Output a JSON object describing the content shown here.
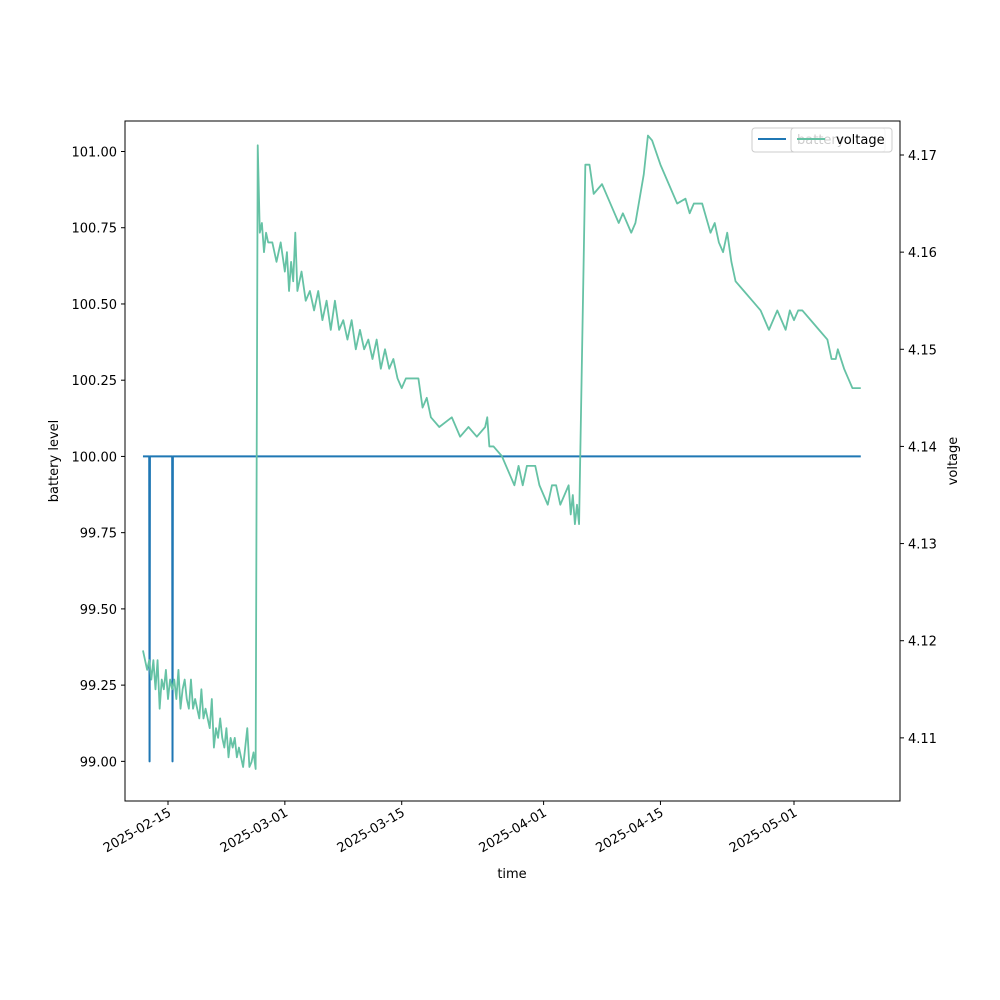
{
  "chart_data": {
    "type": "line",
    "xlabel": "time",
    "x_ticks": [
      "2025-02-15",
      "2025-03-01",
      "2025-03-15",
      "2025-04-01",
      "2025-04-15",
      "2025-05-01"
    ],
    "left_axis": {
      "label": "battery level",
      "ylim": [
        98.87,
        101.1
      ],
      "ticks": [
        "99.00",
        "99.25",
        "99.50",
        "99.75",
        "100.00",
        "100.25",
        "100.50",
        "100.75",
        "101.00"
      ]
    },
    "right_axis": {
      "label": "voltage",
      "ylim": [
        4.1035,
        4.1735
      ],
      "ticks": [
        "4.11",
        "4.12",
        "4.13",
        "4.14",
        "4.15",
        "4.16",
        "4.17"
      ]
    },
    "grid": false,
    "legend": {
      "placement": "top-right",
      "entries": [
        "battery",
        "voltage"
      ]
    },
    "series": [
      {
        "name": "battery",
        "axis": "left",
        "color": "#1f77b4",
        "points": [
          [
            "2025-02-12",
            100
          ],
          [
            "2025-02-12 18:00",
            100
          ],
          [
            "2025-02-12 19:00",
            99
          ],
          [
            "2025-02-12 20:00",
            100
          ],
          [
            "2025-02-15 12:00",
            100
          ],
          [
            "2025-02-15 13:00",
            99
          ],
          [
            "2025-02-15 14:00",
            100
          ],
          [
            "2025-05-09",
            100
          ]
        ]
      },
      {
        "name": "voltage",
        "axis": "right",
        "color": "#66c2a5",
        "points": [
          [
            "2025-02-12",
            4.119
          ],
          [
            "2025-02-12 06:00",
            4.118
          ],
          [
            "2025-02-12 12:00",
            4.117
          ],
          [
            "2025-02-12 18:00",
            4.118
          ],
          [
            "2025-02-13 00:00",
            4.116
          ],
          [
            "2025-02-13 06:00",
            4.118
          ],
          [
            "2025-02-13 12:00",
            4.115
          ],
          [
            "2025-02-13 18:00",
            4.118
          ],
          [
            "2025-02-14 00:00",
            4.113
          ],
          [
            "2025-02-14 06:00",
            4.116
          ],
          [
            "2025-02-14 12:00",
            4.115
          ],
          [
            "2025-02-14 18:00",
            4.117
          ],
          [
            "2025-02-15 00:00",
            4.114
          ],
          [
            "2025-02-15 06:00",
            4.116
          ],
          [
            "2025-02-15 12:00",
            4.115
          ],
          [
            "2025-02-15 18:00",
            4.116
          ],
          [
            "2025-02-16 00:00",
            4.114
          ],
          [
            "2025-02-16 06:00",
            4.117
          ],
          [
            "2025-02-16 12:00",
            4.113
          ],
          [
            "2025-02-16 18:00",
            4.115
          ],
          [
            "2025-02-17 00:00",
            4.116
          ],
          [
            "2025-02-17 06:00",
            4.114
          ],
          [
            "2025-02-17 12:00",
            4.113
          ],
          [
            "2025-02-17 18:00",
            4.116
          ],
          [
            "2025-02-18 00:00",
            4.113
          ],
          [
            "2025-02-18 06:00",
            4.114
          ],
          [
            "2025-02-18 12:00",
            4.113
          ],
          [
            "2025-02-18 18:00",
            4.112
          ],
          [
            "2025-02-19 00:00",
            4.115
          ],
          [
            "2025-02-19 06:00",
            4.112
          ],
          [
            "2025-02-19 12:00",
            4.113
          ],
          [
            "2025-02-19 18:00",
            4.112
          ],
          [
            "2025-02-20 00:00",
            4.111
          ],
          [
            "2025-02-20 06:00",
            4.114
          ],
          [
            "2025-02-20 12:00",
            4.109
          ],
          [
            "2025-02-20 18:00",
            4.111
          ],
          [
            "2025-02-21 00:00",
            4.11
          ],
          [
            "2025-02-21 06:00",
            4.112
          ],
          [
            "2025-02-21 12:00",
            4.11
          ],
          [
            "2025-02-21 18:00",
            4.109
          ],
          [
            "2025-02-22 00:00",
            4.111
          ],
          [
            "2025-02-22 06:00",
            4.108
          ],
          [
            "2025-02-22 12:00",
            4.11
          ],
          [
            "2025-02-22 18:00",
            4.109
          ],
          [
            "2025-02-23 00:00",
            4.11
          ],
          [
            "2025-02-23 06:00",
            4.108
          ],
          [
            "2025-02-23 12:00",
            4.109
          ],
          [
            "2025-02-23 18:00",
            4.108
          ],
          [
            "2025-02-24 00:00",
            4.107
          ],
          [
            "2025-02-24 12:00",
            4.111
          ],
          [
            "2025-02-24 18:00",
            4.107
          ],
          [
            "2025-02-25 00:00",
            4.1075
          ],
          [
            "2025-02-25 06:00",
            4.1085
          ],
          [
            "2025-02-25 12:00",
            4.1068
          ],
          [
            "2025-02-25 18:00",
            4.171
          ],
          [
            "2025-02-26 00:00",
            4.162
          ],
          [
            "2025-02-26 06:00",
            4.163
          ],
          [
            "2025-02-26 12:00",
            4.16
          ],
          [
            "2025-02-26 18:00",
            4.162
          ],
          [
            "2025-02-27 00:00",
            4.161
          ],
          [
            "2025-02-27 12:00",
            4.161
          ],
          [
            "2025-02-28 00:00",
            4.159
          ],
          [
            "2025-02-28 12:00",
            4.161
          ],
          [
            "2025-03-01 00:00",
            4.158
          ],
          [
            "2025-03-01 06:00",
            4.16
          ],
          [
            "2025-03-01 12:00",
            4.156
          ],
          [
            "2025-03-01 18:00",
            4.159
          ],
          [
            "2025-03-02 00:00",
            4.157
          ],
          [
            "2025-03-02 06:00",
            4.162
          ],
          [
            "2025-03-02 12:00",
            4.156
          ],
          [
            "2025-03-03 00:00",
            4.158
          ],
          [
            "2025-03-03 12:00",
            4.155
          ],
          [
            "2025-03-04 00:00",
            4.156
          ],
          [
            "2025-03-04 12:00",
            4.154
          ],
          [
            "2025-03-05 00:00",
            4.156
          ],
          [
            "2025-03-05 12:00",
            4.153
          ],
          [
            "2025-03-06 00:00",
            4.155
          ],
          [
            "2025-03-06 12:00",
            4.152
          ],
          [
            "2025-03-07 00:00",
            4.155
          ],
          [
            "2025-03-07 12:00",
            4.152
          ],
          [
            "2025-03-08 00:00",
            4.153
          ],
          [
            "2025-03-08 12:00",
            4.151
          ],
          [
            "2025-03-09 00:00",
            4.153
          ],
          [
            "2025-03-09 12:00",
            4.15
          ],
          [
            "2025-03-10 00:00",
            4.152
          ],
          [
            "2025-03-10 12:00",
            4.15
          ],
          [
            "2025-03-11 00:00",
            4.151
          ],
          [
            "2025-03-11 12:00",
            4.149
          ],
          [
            "2025-03-12 00:00",
            4.151
          ],
          [
            "2025-03-12 12:00",
            4.148
          ],
          [
            "2025-03-13 00:00",
            4.15
          ],
          [
            "2025-03-13 12:00",
            4.148
          ],
          [
            "2025-03-14 00:00",
            4.149
          ],
          [
            "2025-03-14 12:00",
            4.147
          ],
          [
            "2025-03-15 00:00",
            4.146
          ],
          [
            "2025-03-15 12:00",
            4.147
          ],
          [
            "2025-03-16 00:00",
            4.147
          ],
          [
            "2025-03-17 00:00",
            4.147
          ],
          [
            "2025-03-17 12:00",
            4.144
          ],
          [
            "2025-03-18 00:00",
            4.145
          ],
          [
            "2025-03-18 12:00",
            4.143
          ],
          [
            "2025-03-19 12:00",
            4.142
          ],
          [
            "2025-03-21 00:00",
            4.143
          ],
          [
            "2025-03-22 00:00",
            4.141
          ],
          [
            "2025-03-23 00:00",
            4.142
          ],
          [
            "2025-03-24 00:00",
            4.141
          ],
          [
            "2025-03-25 00:00",
            4.142
          ],
          [
            "2025-03-25 06:00",
            4.143
          ],
          [
            "2025-03-25 12:00",
            4.14
          ],
          [
            "2025-03-26 00:00",
            4.14
          ],
          [
            "2025-03-27 00:00",
            4.139
          ],
          [
            "2025-03-28 00:00",
            4.137
          ],
          [
            "2025-03-28 12:00",
            4.136
          ],
          [
            "2025-03-29 00:00",
            4.138
          ],
          [
            "2025-03-29 12:00",
            4.136
          ],
          [
            "2025-03-30 00:00",
            4.138
          ],
          [
            "2025-03-31 00:00",
            4.138
          ],
          [
            "2025-03-31 12:00",
            4.136
          ],
          [
            "2025-04-01 00:00",
            4.135
          ],
          [
            "2025-04-01 12:00",
            4.134
          ],
          [
            "2025-04-02 00:00",
            4.136
          ],
          [
            "2025-04-02 12:00",
            4.136
          ],
          [
            "2025-04-03 00:00",
            4.134
          ],
          [
            "2025-04-03 12:00",
            4.135
          ],
          [
            "2025-04-04 00:00",
            4.136
          ],
          [
            "2025-04-04 06:00",
            4.133
          ],
          [
            "2025-04-04 12:00",
            4.135
          ],
          [
            "2025-04-04 18:00",
            4.132
          ],
          [
            "2025-04-05 00:00",
            4.134
          ],
          [
            "2025-04-05 06:00",
            4.132
          ],
          [
            "2025-04-06 00:00",
            4.169
          ],
          [
            "2025-04-06 12:00",
            4.169
          ],
          [
            "2025-04-07 00:00",
            4.166
          ],
          [
            "2025-04-08 00:00",
            4.167
          ],
          [
            "2025-04-09 00:00",
            4.165
          ],
          [
            "2025-04-10 00:00",
            4.163
          ],
          [
            "2025-04-10 12:00",
            4.164
          ],
          [
            "2025-04-11 00:00",
            4.163
          ],
          [
            "2025-04-11 12:00",
            4.162
          ],
          [
            "2025-04-12 00:00",
            4.163
          ],
          [
            "2025-04-13 00:00",
            4.168
          ],
          [
            "2025-04-13 12:00",
            4.172
          ],
          [
            "2025-04-14 00:00",
            4.1715
          ],
          [
            "2025-04-15 00:00",
            4.169
          ],
          [
            "2025-04-16 00:00",
            4.167
          ],
          [
            "2025-04-17 00:00",
            4.165
          ],
          [
            "2025-04-18 00:00",
            4.1655
          ],
          [
            "2025-04-18 12:00",
            4.164
          ],
          [
            "2025-04-19 00:00",
            4.165
          ],
          [
            "2025-04-20 00:00",
            4.165
          ],
          [
            "2025-04-21 00:00",
            4.162
          ],
          [
            "2025-04-21 12:00",
            4.163
          ],
          [
            "2025-04-22 00:00",
            4.161
          ],
          [
            "2025-04-22 12:00",
            4.16
          ],
          [
            "2025-04-23 00:00",
            4.162
          ],
          [
            "2025-04-23 12:00",
            4.159
          ],
          [
            "2025-04-24 00:00",
            4.157
          ],
          [
            "2025-04-25 00:00",
            4.156
          ],
          [
            "2025-04-26 00:00",
            4.155
          ],
          [
            "2025-04-27 00:00",
            4.154
          ],
          [
            "2025-04-28 00:00",
            4.152
          ],
          [
            "2025-04-28 12:00",
            4.153
          ],
          [
            "2025-04-29 00:00",
            4.154
          ],
          [
            "2025-04-29 12:00",
            4.153
          ],
          [
            "2025-04-30 00:00",
            4.152
          ],
          [
            "2025-04-30 12:00",
            4.154
          ],
          [
            "2025-05-01 00:00",
            4.153
          ],
          [
            "2025-05-01 12:00",
            4.154
          ],
          [
            "2025-05-02 00:00",
            4.154
          ],
          [
            "2025-05-03 00:00",
            4.153
          ],
          [
            "2025-05-04 00:00",
            4.152
          ],
          [
            "2025-05-05 00:00",
            4.151
          ],
          [
            "2025-05-05 12:00",
            4.149
          ],
          [
            "2025-05-06 00:00",
            4.149
          ],
          [
            "2025-05-06 06:00",
            4.15
          ],
          [
            "2025-05-07 00:00",
            4.148
          ],
          [
            "2025-05-07 12:00",
            4.147
          ],
          [
            "2025-05-08 00:00",
            4.146
          ],
          [
            "2025-05-09 00:00",
            4.146
          ]
        ]
      }
    ]
  }
}
